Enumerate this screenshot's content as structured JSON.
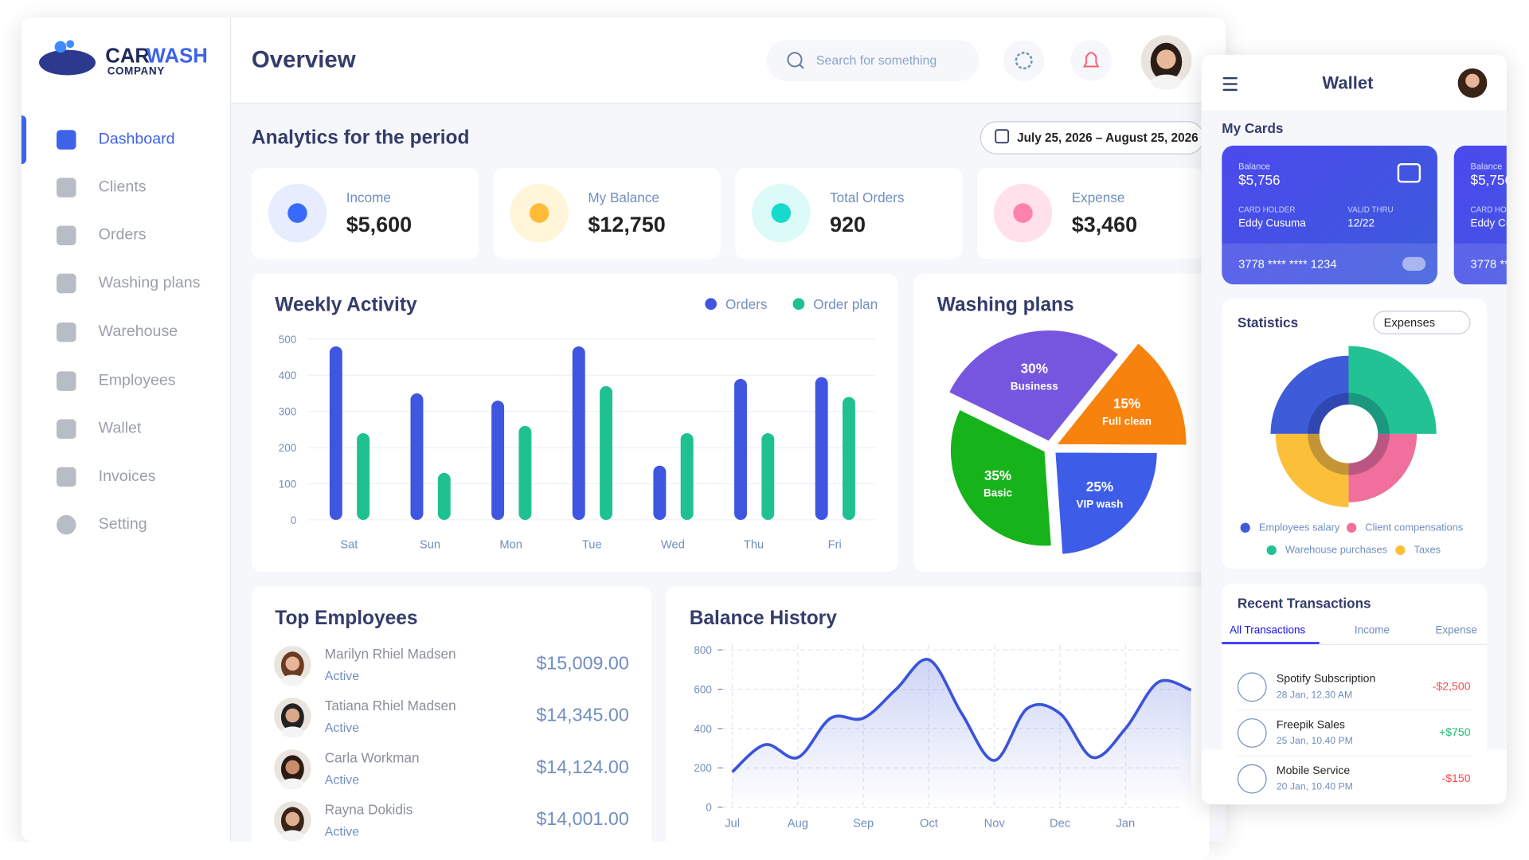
{
  "brand": {
    "name_accent": "CAR",
    "name_main": "WASH",
    "subtitle": "COMPANY"
  },
  "sidebar": {
    "items": [
      "Dashboard",
      "Clients",
      "Orders",
      "Washing plans",
      "Warehouse",
      "Employees",
      "Wallet",
      "Invoices",
      "Setting"
    ],
    "active": 0
  },
  "header": {
    "title": "Overview",
    "search_placeholder": "Search for something"
  },
  "analytics": {
    "title": "Analytics for the period",
    "date_range": "July 25, 2026 – August 25, 2026",
    "stats": [
      {
        "label": "Income",
        "value": "$5,600"
      },
      {
        "label": "My Balance",
        "value": "$12,750"
      },
      {
        "label": "Total Orders",
        "value": "920"
      },
      {
        "label": "Expense",
        "value": "$3,460"
      }
    ]
  },
  "weekly_activity": {
    "type": "bar",
    "title": "Weekly Activity",
    "categories": [
      "Sat",
      "Sun",
      "Mon",
      "Tue",
      "Wed",
      "Thu",
      "Fri"
    ],
    "series": [
      {
        "name": "Orders",
        "color": "#3f56e0",
        "values": [
          480,
          350,
          330,
          480,
          150,
          390,
          395
        ]
      },
      {
        "name": "Order plan",
        "color": "#1fc190",
        "values": [
          240,
          130,
          260,
          370,
          240,
          240,
          340
        ]
      }
    ],
    "ylim": [
      0,
      500
    ],
    "yticks": [
      0,
      100,
      200,
      300,
      400,
      500
    ],
    "grid": true,
    "legend": "top-right"
  },
  "washing_plans": {
    "type": "pie",
    "title": "Washing plans",
    "categories": [
      "Business",
      "Full clean",
      "VIP wash",
      "Basic"
    ],
    "values": [
      30,
      15,
      25,
      35
    ],
    "value_labels": [
      "30%",
      "15%",
      "25%",
      "35%"
    ],
    "colors": [
      "#7756df",
      "#f7820d",
      "#3d5ce8",
      "#17b31a"
    ]
  },
  "top_employees": {
    "title": "Top Employees",
    "rows": [
      {
        "name": "Marilyn Rhiel Madsen",
        "status": "Active",
        "amount": "$15,009.00"
      },
      {
        "name": "Tatiana Rhiel Madsen",
        "status": "Active",
        "amount": "$14,345.00"
      },
      {
        "name": "Carla Workman",
        "status": "Active",
        "amount": "$14,124.00"
      },
      {
        "name": "Rayna Dokidis",
        "status": "Active",
        "amount": "$14,001.00"
      }
    ]
  },
  "balance_history": {
    "type": "line",
    "title": "Balance History",
    "categories": [
      "Jul",
      null,
      "Aug",
      null,
      "Sep",
      null,
      "Oct",
      null,
      "Nov",
      null,
      "Dec",
      null,
      "Jan",
      null,
      null
    ],
    "values": [
      180,
      318,
      253,
      453,
      453,
      600,
      750,
      477,
      238,
      502,
      477,
      253,
      400,
      636,
      596
    ],
    "color": "#3b54d9",
    "ylim": [
      0,
      800
    ],
    "yticks": [
      0,
      200,
      400,
      600,
      800
    ],
    "grid": true
  },
  "wallet": {
    "title": "Wallet",
    "my_cards": "My Cards",
    "card": {
      "balance_label": "Balance",
      "balance": "$5,756",
      "holder_label": "CARD HOLDER",
      "holder": "Eddy Cusuma",
      "valid_label": "VALID THRU",
      "valid": "12/22",
      "number": "3778 **** **** 1234"
    },
    "statistics": {
      "type": "polar",
      "title": "Statistics",
      "filter": "Expenses",
      "categories": [
        "Employees salary",
        "Client compensations",
        "Warehouse purchases",
        "Taxes"
      ],
      "values": [
        80,
        70,
        90,
        75
      ],
      "colors": [
        "#3e5bd8",
        "#f06f9c",
        "#22c295",
        "#fbbf3a"
      ]
    },
    "transactions": {
      "title": "Recent Transactions",
      "tabs": [
        "All Transactions",
        "Income",
        "Expense"
      ],
      "items": [
        {
          "name": "Spotify Subscription",
          "date": "28 Jan, 12.30 AM",
          "amount": "-$2,500"
        },
        {
          "name": "Freepik Sales",
          "date": "25 Jan, 10.40 PM",
          "amount": "+$750"
        },
        {
          "name": "Mobile Service",
          "date": "20 Jan, 10.40 PM",
          "amount": "-$150"
        }
      ]
    }
  }
}
